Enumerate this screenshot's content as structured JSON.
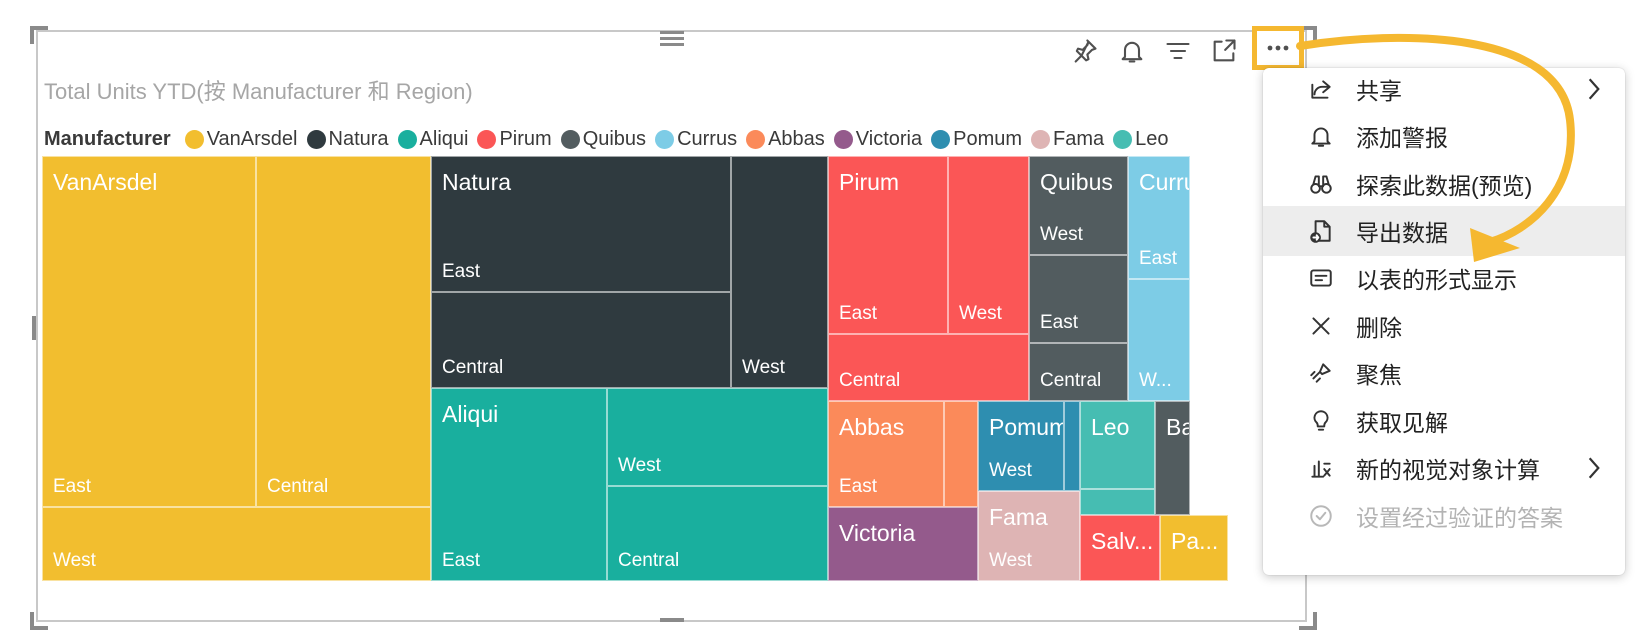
{
  "visual": {
    "title": "Total Units YTD(按 Manufacturer 和 Region)",
    "toolbar": {
      "pin": "pin-icon",
      "alert": "bell-icon",
      "filter": "filter-icon",
      "focus": "focus-mode-icon",
      "more": "more-options-icon"
    }
  },
  "legend": {
    "title": "Manufacturer",
    "items": [
      {
        "label": "VanArsdel",
        "color": "#F2BE2F"
      },
      {
        "label": "Natura",
        "color": "#2F3A3F"
      },
      {
        "label": "Aliqui",
        "color": "#19AF9E"
      },
      {
        "label": "Pirum",
        "color": "#FB5656"
      },
      {
        "label": "Quibus",
        "color": "#525C5F"
      },
      {
        "label": "Currus",
        "color": "#7DCCE6"
      },
      {
        "label": "Abbas",
        "color": "#FB8A5A"
      },
      {
        "label": "Victoria",
        "color": "#945A8C"
      },
      {
        "label": "Pomum",
        "color": "#2E8EB0"
      },
      {
        "label": "Fama",
        "color": "#DEB4B4"
      },
      {
        "label": "Leo",
        "color": "#46BDB2"
      }
    ]
  },
  "treemap": {
    "groups": [
      {
        "name": "VanArsdel",
        "color": "#F2BE2F",
        "regions": [
          "East",
          "Central",
          "West"
        ]
      },
      {
        "name": "Natura",
        "color": "#2F3A3F",
        "regions": [
          "East",
          "Central",
          "West"
        ]
      },
      {
        "name": "Aliqui",
        "color": "#19AF9E",
        "regions": [
          "East",
          "West",
          "Central"
        ]
      },
      {
        "name": "Pirum",
        "color": "#FB5656",
        "regions": [
          "East",
          "West",
          "Central"
        ]
      },
      {
        "name": "Quibus",
        "color": "#525C5F",
        "regions": [
          "West",
          "East",
          "Central"
        ]
      },
      {
        "name": "Curru",
        "color": "#7DCCE6",
        "regions": [
          "East",
          "W..."
        ]
      },
      {
        "name": "Abbas",
        "color": "#FB8A5A",
        "regions": [
          "East"
        ]
      },
      {
        "name": "Pomum",
        "color": "#2E8EB0",
        "regions": [
          "West"
        ]
      },
      {
        "name": "Leo",
        "color": "#46BDB2",
        "regions": []
      },
      {
        "name": "Ba",
        "color": "#525C5F",
        "regions": []
      },
      {
        "name": "Victoria",
        "color": "#945A8C",
        "regions": []
      },
      {
        "name": "Fama",
        "color": "#DEB4B4",
        "regions": [
          "West"
        ]
      },
      {
        "name": "Salv...",
        "color": "#FB5656",
        "regions": []
      },
      {
        "name": "Pa...",
        "color": "#F2BE2F",
        "regions": []
      }
    ]
  },
  "menu": {
    "items": [
      {
        "label": "共享",
        "icon": "share-icon",
        "submenu": true,
        "state": "normal"
      },
      {
        "label": "添加警报",
        "icon": "bell-icon",
        "submenu": false,
        "state": "normal"
      },
      {
        "label": "探索此数据(预览)",
        "icon": "binoculars-icon",
        "submenu": false,
        "state": "normal"
      },
      {
        "label": "导出数据",
        "icon": "export-data-icon",
        "submenu": false,
        "state": "hover"
      },
      {
        "label": "以表的形式显示",
        "icon": "table-view-icon",
        "submenu": false,
        "state": "normal"
      },
      {
        "label": "删除",
        "icon": "close-icon",
        "submenu": false,
        "state": "normal"
      },
      {
        "label": "聚焦",
        "icon": "spotlight-icon",
        "submenu": false,
        "state": "normal"
      },
      {
        "label": "获取见解",
        "icon": "lightbulb-icon",
        "submenu": false,
        "state": "normal"
      },
      {
        "label": "新的视觉对象计算",
        "icon": "calculation-icon",
        "submenu": true,
        "state": "normal"
      },
      {
        "label": "设置经过验证的答案",
        "icon": "check-circle-icon",
        "submenu": false,
        "state": "disabled"
      }
    ]
  },
  "annotation": {
    "arrow_color": "#F5B830"
  }
}
